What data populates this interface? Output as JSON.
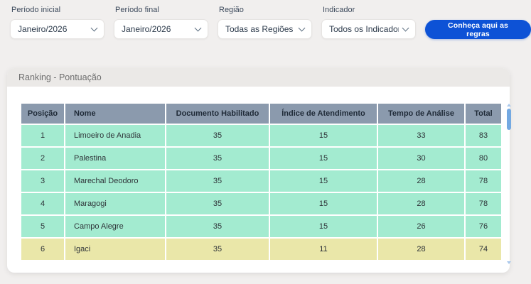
{
  "filters": {
    "fields": [
      {
        "label": "Período inicial",
        "value": "Janeiro/2026"
      },
      {
        "label": "Período final",
        "value": "Janeiro/2026"
      },
      {
        "label": "Região",
        "value": "Todas as Regiões"
      },
      {
        "label": "Indicador",
        "value": "Todos os Indicadores"
      }
    ],
    "rules_button_label": "Conheça aqui as regras"
  },
  "panel": {
    "title": "Ranking - Pontuação"
  },
  "table": {
    "columns": [
      "Posição",
      "Nome",
      "Documento Habilitado",
      "Índice de Atendimento",
      "Tempo de Análise",
      "Total"
    ],
    "rows": [
      {
        "position": "1",
        "name": "Limoeiro de Anadia",
        "documento_habilitado": "35",
        "indice_atendimento": "15",
        "tempo_analise": "33",
        "total": "83",
        "highlight": "green"
      },
      {
        "position": "2",
        "name": "Palestina",
        "documento_habilitado": "35",
        "indice_atendimento": "15",
        "tempo_analise": "30",
        "total": "80",
        "highlight": "green"
      },
      {
        "position": "3",
        "name": "Marechal Deodoro",
        "documento_habilitado": "35",
        "indice_atendimento": "15",
        "tempo_analise": "28",
        "total": "78",
        "highlight": "green"
      },
      {
        "position": "4",
        "name": "Maragogi",
        "documento_habilitado": "35",
        "indice_atendimento": "15",
        "tempo_analise": "28",
        "total": "78",
        "highlight": "green"
      },
      {
        "position": "5",
        "name": "Campo Alegre",
        "documento_habilitado": "35",
        "indice_atendimento": "15",
        "tempo_analise": "26",
        "total": "76",
        "highlight": "green"
      },
      {
        "position": "6",
        "name": "Igaci",
        "documento_habilitado": "35",
        "indice_atendimento": "11",
        "tempo_analise": "28",
        "total": "74",
        "highlight": "yellow"
      }
    ]
  },
  "colors": {
    "accent_blue": "#0d52d6",
    "table_header_bg": "#8b9aad",
    "row_green": "#a3ebd0",
    "row_yellow": "#eae7a9"
  }
}
